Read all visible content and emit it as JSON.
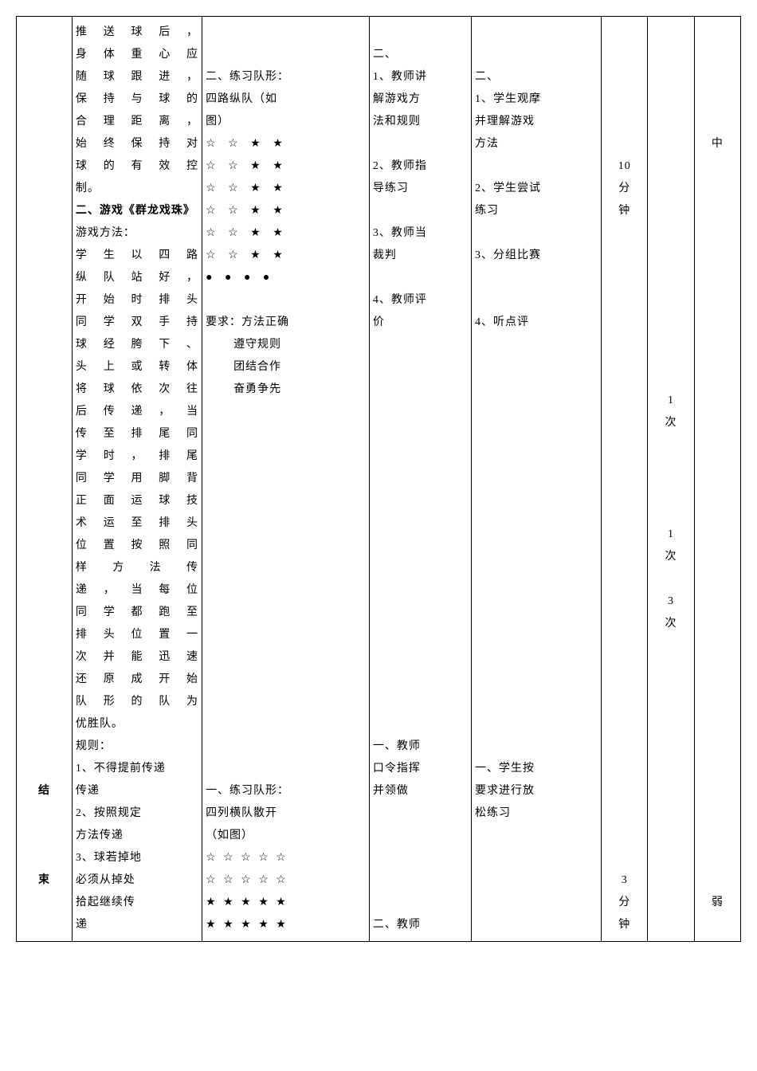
{
  "row1": {
    "col1": "",
    "col2_lines": [
      "推送球后，身体重心应随球跟进，保持与球的合理距离，始终保持对球的有效控制。"
    ],
    "col2_section2_title": "二、游戏《群龙戏珠》",
    "col2_method_label": "游戏方法：",
    "col2_method": "学生以四路纵队站好，开始时排头同学双手持球经胯下、头上或转体将球依次往后传递，当传至排尾同学时，排尾同学用脚背正面运球技术运至排头位置按照同样方法传递，当每位同学都跑至排头位置一次并能迅速还原成开始队形的队为优胜队。",
    "col2_rules_label": "规则：",
    "col2_rule1": "1、不得提前传递",
    "col2_rule2": "2、按照规定方法传递",
    "col2_rule3": "3、球若掉地必须从掉处拾起继续传递",
    "col3_header": "二、练习队形：四路纵队（如图）",
    "col3_formation": [
      "☆ ☆ ★ ★",
      "☆ ☆ ★ ★",
      "☆ ☆ ★ ★",
      "☆ ☆ ★ ★",
      "☆ ☆ ★ ★",
      "☆ ☆ ★ ★",
      "● ● ● ●"
    ],
    "col3_req_label": "要求：",
    "col3_req1": "方法正确",
    "col3_req2": "遵守规则",
    "col3_req3": "团结合作",
    "col3_req4": "奋勇争先",
    "col4_header": "二、",
    "col4_item1": "1、教师讲解游戏方法和规则",
    "col4_item2": "2、教师指导练习",
    "col4_item3": "3、教师当裁判",
    "col4_item4": "4、教师评价",
    "col5_header": "二、",
    "col5_item1": "1、学生观摩并理解游戏方法",
    "col5_item2": "2、学生尝试练习",
    "col5_item3": "3、分组比赛",
    "col5_item4": "4、听点评",
    "col6": "10分钟",
    "col7_a": "1次",
    "col7_b": "1次",
    "col7_c": "3次",
    "col8": "中"
  },
  "row2": {
    "col1a": "结",
    "col1b": "束",
    "col3_header": "一、练习队形：四列横队散开（如图）",
    "col3_formation": [
      "☆ ☆ ☆ ☆ ☆",
      "☆ ☆ ☆ ☆ ☆",
      "★ ★ ★ ★ ★",
      "★ ★ ★ ★ ★"
    ],
    "col4_item1": "一、教师口令指挥并领做",
    "col4_item2": "二、教师",
    "col5_item1": "一、学生按要求进行放松练习",
    "col6": "3分钟",
    "col7": "",
    "col8": "弱"
  }
}
